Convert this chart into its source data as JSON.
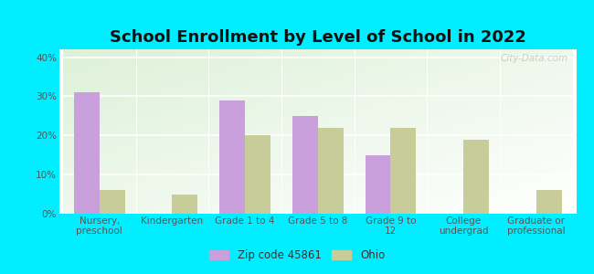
{
  "title": "School Enrollment by Level of School in 2022",
  "categories": [
    "Nursery,\npreschool",
    "Kindergarten",
    "Grade 1 to 4",
    "Grade 5 to 8",
    "Grade 9 to\n12",
    "College\nundergrad",
    "Graduate or\nprofessional"
  ],
  "zip_values": [
    31,
    0,
    29,
    25,
    15,
    0,
    0
  ],
  "ohio_values": [
    6,
    5,
    20,
    22,
    22,
    19,
    6
  ],
  "zip_color": "#c9a0dc",
  "ohio_color": "#c8cc99",
  "background_outer": "#00eeff",
  "background_inner_top_left": "#e8f5e0",
  "background_inner_bottom_right": "#f5fff5",
  "ylim": [
    0,
    42
  ],
  "yticks": [
    0,
    10,
    20,
    30,
    40
  ],
  "ytick_labels": [
    "0%",
    "10%",
    "20%",
    "30%",
    "40%"
  ],
  "legend_zip_label": "Zip code 45861",
  "legend_ohio_label": "Ohio",
  "title_fontsize": 13,
  "tick_fontsize": 7.5,
  "bar_width": 0.35,
  "watermark": "City-Data.com"
}
